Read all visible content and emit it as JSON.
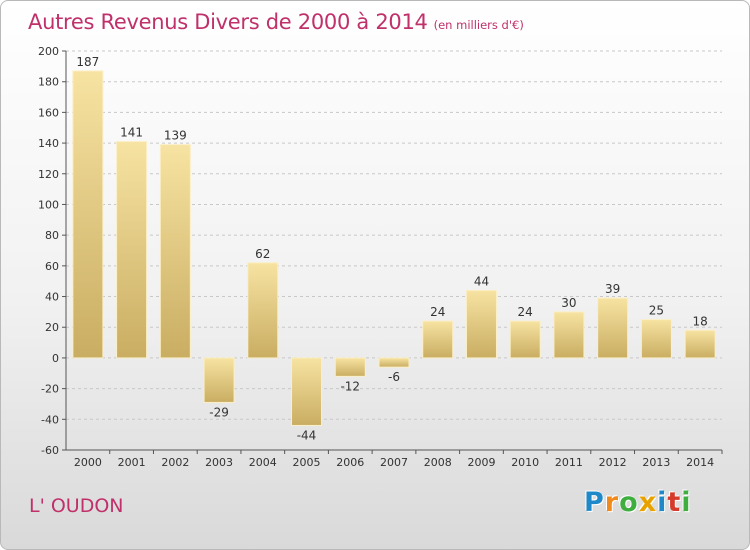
{
  "title": "Autres Revenus Divers de 2000 à 2014",
  "subtitle": "(en milliers d'€)",
  "commune": "L' OUDON",
  "logo": {
    "letters": [
      "P",
      "r",
      "o",
      "x",
      "i",
      "t",
      "i"
    ],
    "colors": [
      "#1e88c8",
      "#f08a1c",
      "#3fae3f",
      "#e8a200",
      "#1e88c8",
      "#d63a2a",
      "#3fae3f"
    ]
  },
  "colors": {
    "bar_top": "#f7e3a2",
    "bar_bottom": "#c9ad62",
    "accent": "#c0306a"
  },
  "chart_data": {
    "type": "bar",
    "categories": [
      "2000",
      "2001",
      "2002",
      "2003",
      "2004",
      "2005",
      "2006",
      "2007",
      "2008",
      "2009",
      "2010",
      "2011",
      "2012",
      "2013",
      "2014"
    ],
    "values": [
      187,
      141,
      139,
      -29,
      62,
      -44,
      -12,
      -6,
      24,
      44,
      24,
      30,
      39,
      25,
      18
    ],
    "data_labels": [
      "187",
      "141",
      "139",
      "-29",
      "62",
      "-44",
      "-12",
      "-6",
      "24",
      "44",
      "24",
      "30",
      "39",
      "25",
      "18"
    ],
    "title": "Autres Revenus Divers de 2000 à 2014",
    "xlabel": "",
    "ylabel": "",
    "ylim": [
      -60,
      200
    ],
    "yticks": [
      -60,
      -40,
      -20,
      0,
      20,
      40,
      60,
      80,
      100,
      120,
      140,
      160,
      180,
      200
    ],
    "grid": true
  }
}
